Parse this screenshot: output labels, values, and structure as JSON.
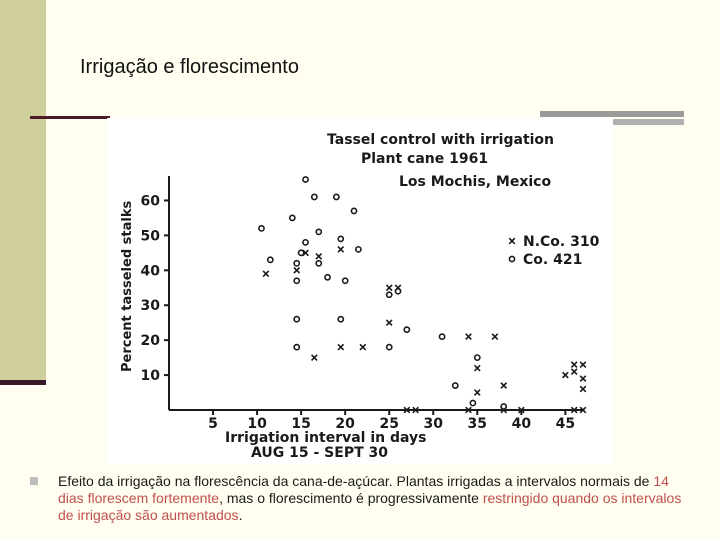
{
  "slide": {
    "title": "Irrigação e florescimento",
    "caption": {
      "part1": "Efeito da irrigação na florescência da cana-de-açúcar. Plantas irrigadas a intervalos normais de ",
      "highlight1": "14 dias florescem fortemente",
      "part2": ", mas o florescimento é progressivamente ",
      "highlight2": "restringido quando os intervalos de irrigação são aumentados",
      "part3": "."
    },
    "colors": {
      "background": "#fffef0",
      "sidebar": "#cfcf9c",
      "highlight": "#c0504d"
    }
  },
  "chart_data": {
    "type": "scatter",
    "title": "Tassel control with irrigation",
    "subtitle_lines": [
      "Plant cane 1961",
      "Los Mochis, Mexico"
    ],
    "xlabel": "Irrigation interval in days",
    "xlabel2": "AUG 15 - SEPT 30",
    "ylabel": "Percent tasseled stalks",
    "x_ticks": [
      5,
      10,
      15,
      20,
      25,
      30,
      35,
      40,
      45
    ],
    "y_ticks": [
      10,
      20,
      30,
      40,
      50,
      60
    ],
    "xlim": [
      0,
      47
    ],
    "ylim": [
      0,
      67
    ],
    "grid": false,
    "legend": "right",
    "series": [
      {
        "name": "N.Co. 310",
        "marker": "x",
        "points": [
          [
            11,
            39
          ],
          [
            14.5,
            40
          ],
          [
            15.5,
            45
          ],
          [
            17,
            44
          ],
          [
            19.5,
            46
          ],
          [
            16.5,
            15
          ],
          [
            19.5,
            18
          ],
          [
            22,
            18
          ],
          [
            25,
            35
          ],
          [
            26,
            35
          ],
          [
            25,
            25
          ],
          [
            27,
            0
          ],
          [
            28,
            0
          ],
          [
            34,
            21
          ],
          [
            37,
            21
          ],
          [
            35,
            12
          ],
          [
            35,
            5
          ],
          [
            38,
            7
          ],
          [
            40,
            0
          ],
          [
            38,
            0
          ],
          [
            34,
            0
          ],
          [
            45,
            10
          ],
          [
            46,
            13
          ],
          [
            47,
            13
          ],
          [
            46,
            11
          ],
          [
            47,
            9
          ],
          [
            47,
            6
          ],
          [
            46,
            0
          ],
          [
            47,
            0
          ]
        ]
      },
      {
        "name": "Co. 421",
        "marker": "o",
        "points": [
          [
            15.5,
            66
          ],
          [
            10.5,
            52
          ],
          [
            14,
            55
          ],
          [
            16.5,
            61
          ],
          [
            19,
            61
          ],
          [
            21,
            57
          ],
          [
            14.5,
            42
          ],
          [
            15.5,
            48
          ],
          [
            17,
            51
          ],
          [
            19.5,
            49
          ],
          [
            15,
            45
          ],
          [
            21.5,
            46
          ],
          [
            11.5,
            43
          ],
          [
            14.5,
            37
          ],
          [
            18,
            38
          ],
          [
            20,
            37
          ],
          [
            17,
            42
          ],
          [
            25,
            33
          ],
          [
            26,
            34
          ],
          [
            14.5,
            26
          ],
          [
            19.5,
            26
          ],
          [
            14.5,
            18
          ],
          [
            25,
            18
          ],
          [
            27,
            23
          ],
          [
            31,
            21
          ],
          [
            35,
            15
          ],
          [
            32.5,
            7
          ],
          [
            34.5,
            2
          ],
          [
            38,
            1
          ]
        ]
      }
    ]
  }
}
